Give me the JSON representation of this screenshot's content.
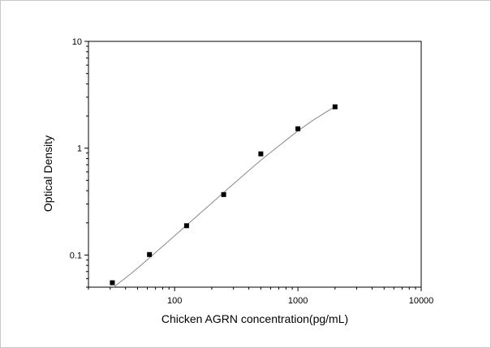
{
  "chart_data": {
    "type": "scatter",
    "title": "",
    "xlabel": "Chicken AGRN concentration(pg/mL)",
    "ylabel": "Optical Density",
    "xscale": "log",
    "yscale": "log",
    "xlim": [
      20,
      10000
    ],
    "ylim": [
      0.05,
      10
    ],
    "x_ticks": [
      100,
      1000,
      10000
    ],
    "x_tick_labels": [
      "100",
      "1000",
      "10000"
    ],
    "y_ticks": [
      0.1,
      1,
      10
    ],
    "y_tick_labels": [
      "0.1",
      "1",
      "10"
    ],
    "grid": false,
    "legend": "none",
    "series": [
      {
        "x": [
          31.25,
          62.5,
          125,
          250,
          500,
          1000,
          2000
        ],
        "y": [
          0.055,
          0.101,
          0.188,
          0.368,
          0.885,
          1.52,
          2.44
        ],
        "marker": "square",
        "color": "#000000"
      }
    ],
    "fit_curve": {
      "x": [
        31.25,
        45,
        62.5,
        90,
        125,
        180,
        250,
        350,
        500,
        700,
        1000,
        1400,
        2000
      ],
      "y": [
        0.049,
        0.068,
        0.094,
        0.136,
        0.19,
        0.275,
        0.385,
        0.54,
        0.77,
        1.05,
        1.45,
        1.9,
        2.45
      ],
      "color": "#888888"
    }
  }
}
